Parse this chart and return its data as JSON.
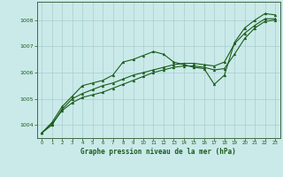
{
  "title": "Graphe pression niveau de la mer (hPa)",
  "background_color": "#caeaea",
  "plot_bg_color": "#caeaea",
  "grid_color": "#a8cccc",
  "line_color": "#1a5c1a",
  "marker_color": "#1a5c1a",
  "xlim": [
    -0.5,
    23.5
  ],
  "ylim": [
    1003.5,
    1008.7
  ],
  "yticks": [
    1004,
    1005,
    1006,
    1007,
    1008
  ],
  "xticks": [
    0,
    1,
    2,
    3,
    4,
    5,
    6,
    7,
    8,
    9,
    10,
    11,
    12,
    13,
    14,
    15,
    16,
    17,
    18,
    19,
    20,
    21,
    22,
    23
  ],
  "series1": [
    1003.7,
    1004.1,
    1004.7,
    1005.1,
    1005.5,
    1005.6,
    1005.7,
    1005.9,
    1006.4,
    1006.5,
    1006.65,
    1006.8,
    1006.7,
    1006.4,
    1006.3,
    1006.2,
    1006.15,
    1005.55,
    1005.9,
    1007.15,
    1007.7,
    1008.0,
    1008.25,
    1008.2
  ],
  "series2": [
    1003.7,
    1004.0,
    1004.6,
    1005.0,
    1005.2,
    1005.35,
    1005.5,
    1005.6,
    1005.75,
    1005.9,
    1006.0,
    1006.1,
    1006.2,
    1006.3,
    1006.35,
    1006.35,
    1006.3,
    1006.25,
    1006.4,
    1007.1,
    1007.5,
    1007.8,
    1008.05,
    1008.05
  ],
  "series3": [
    1003.7,
    1004.05,
    1004.55,
    1004.85,
    1005.05,
    1005.15,
    1005.25,
    1005.4,
    1005.55,
    1005.7,
    1005.85,
    1006.0,
    1006.1,
    1006.2,
    1006.25,
    1006.25,
    1006.2,
    1006.1,
    1006.15,
    1006.7,
    1007.3,
    1007.7,
    1007.95,
    1008.0
  ]
}
